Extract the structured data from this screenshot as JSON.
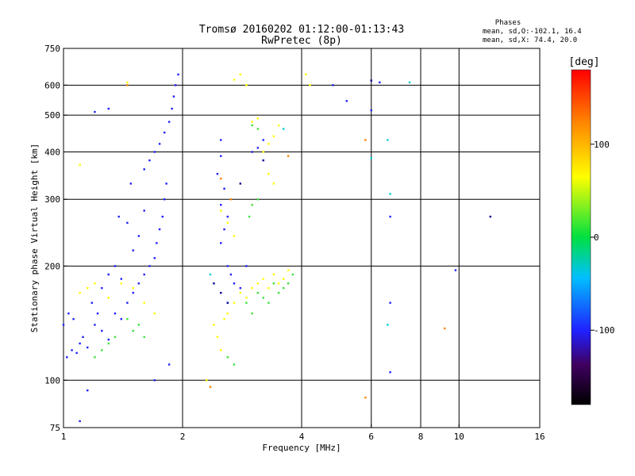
{
  "chart_data": {
    "type": "scatter",
    "title": "Tromsø 20160202 01:12:00-01:13:43",
    "subtitle": "RwPretec (8p)",
    "xlabel": "Frequency [MHz]",
    "ylabel": "Stationary phase Virtual Height [km]",
    "xscale": "log",
    "yscale": "log",
    "xlim": [
      1,
      16
    ],
    "ylim": [
      75,
      750
    ],
    "xticks": [
      1,
      2,
      4,
      6,
      8,
      10,
      16
    ],
    "yticks": [
      75,
      100,
      200,
      300,
      400,
      500,
      600,
      750
    ],
    "grid_x": [
      2,
      4,
      6,
      8,
      10
    ],
    "grid_y": [
      100,
      200,
      300,
      400,
      500,
      600
    ],
    "legend": {
      "title": "Phases",
      "lines": [
        "mean, sd,O:-102.1, 16.4",
        "mean, sd,X:  74.4, 20.0"
      ],
      "placement": "top-right"
    },
    "colorbar": {
      "label": "[deg]",
      "range": [
        -180,
        180
      ],
      "ticks": [
        "100",
        "0",
        "-100"
      ],
      "tick_values": [
        100,
        0,
        -100
      ]
    },
    "series": [
      {
        "name": "O",
        "color": "#2020ff",
        "points": [
          [
            1.02,
            115
          ],
          [
            1.05,
            120
          ],
          [
            1.08,
            118
          ],
          [
            1.1,
            125
          ],
          [
            1.12,
            130
          ],
          [
            1.15,
            122
          ],
          [
            1.2,
            140
          ],
          [
            1.25,
            135
          ],
          [
            1.3,
            128
          ],
          [
            1.35,
            150
          ],
          [
            1.4,
            145
          ],
          [
            1.45,
            160
          ],
          [
            1.5,
            170
          ],
          [
            1.55,
            180
          ],
          [
            1.6,
            190
          ],
          [
            1.65,
            200
          ],
          [
            1.7,
            210
          ],
          [
            1.72,
            230
          ],
          [
            1.75,
            250
          ],
          [
            1.78,
            270
          ],
          [
            1.8,
            300
          ],
          [
            1.82,
            330
          ],
          [
            1.6,
            360
          ],
          [
            1.65,
            380
          ],
          [
            1.7,
            400
          ],
          [
            1.75,
            420
          ],
          [
            1.8,
            450
          ],
          [
            1.85,
            480
          ],
          [
            1.88,
            520
          ],
          [
            1.9,
            560
          ],
          [
            1.92,
            600
          ],
          [
            1.95,
            640
          ],
          [
            1.5,
            220
          ],
          [
            1.45,
            260
          ],
          [
            1.55,
            240
          ],
          [
            1.6,
            280
          ],
          [
            1.35,
            200
          ],
          [
            1.3,
            190
          ],
          [
            1.25,
            175
          ],
          [
            1.4,
            185
          ],
          [
            1.18,
            160
          ],
          [
            1.22,
            150
          ],
          [
            1.0,
            140
          ],
          [
            1.03,
            150
          ],
          [
            1.06,
            145
          ],
          [
            1.3,
            520
          ],
          [
            1.2,
            510
          ],
          [
            1.85,
            110
          ],
          [
            1.7,
            100
          ],
          [
            1.15,
            94
          ],
          [
            1.1,
            78
          ],
          [
            2.5,
            430
          ],
          [
            2.5,
            390
          ],
          [
            2.45,
            350
          ],
          [
            2.55,
            320
          ],
          [
            2.5,
            290
          ],
          [
            2.6,
            270
          ],
          [
            2.55,
            250
          ],
          [
            2.5,
            230
          ],
          [
            2.6,
            200
          ],
          [
            2.65,
            190
          ],
          [
            2.7,
            180
          ],
          [
            2.8,
            175
          ],
          [
            2.9,
            200
          ],
          [
            3.0,
            400
          ],
          [
            3.1,
            410
          ],
          [
            3.2,
            430
          ],
          [
            6.0,
            515
          ],
          [
            6.7,
            270
          ],
          [
            6.7,
            160
          ],
          [
            6.7,
            105
          ],
          [
            6.3,
            610
          ],
          [
            9.8,
            195
          ],
          [
            5.2,
            545
          ],
          [
            4.8,
            600
          ],
          [
            1.38,
            270
          ],
          [
            1.48,
            330
          ]
        ]
      },
      {
        "name": "X",
        "color": "#ffff00",
        "points": [
          [
            2.4,
            140
          ],
          [
            2.45,
            130
          ],
          [
            2.5,
            120
          ],
          [
            2.55,
            145
          ],
          [
            2.6,
            150
          ],
          [
            2.7,
            160
          ],
          [
            2.8,
            170
          ],
          [
            2.9,
            165
          ],
          [
            3.0,
            175
          ],
          [
            3.1,
            180
          ],
          [
            3.2,
            185
          ],
          [
            3.3,
            175
          ],
          [
            3.4,
            190
          ],
          [
            3.5,
            180
          ],
          [
            3.6,
            185
          ],
          [
            3.7,
            195
          ],
          [
            3.5,
            470
          ],
          [
            3.4,
            440
          ],
          [
            3.3,
            420
          ],
          [
            3.2,
            400
          ],
          [
            3.0,
            480
          ],
          [
            3.1,
            490
          ],
          [
            2.9,
            600
          ],
          [
            2.8,
            640
          ],
          [
            2.7,
            620
          ],
          [
            3.3,
            350
          ],
          [
            3.4,
            330
          ],
          [
            2.5,
            280
          ],
          [
            2.6,
            260
          ],
          [
            2.7,
            240
          ],
          [
            1.1,
            170
          ],
          [
            1.15,
            175
          ],
          [
            1.2,
            180
          ],
          [
            1.3,
            165
          ],
          [
            1.4,
            180
          ],
          [
            1.5,
            175
          ],
          [
            1.6,
            160
          ],
          [
            1.7,
            150
          ],
          [
            1.1,
            370
          ],
          [
            1.45,
            610
          ],
          [
            4.1,
            640
          ],
          [
            4.2,
            600
          ],
          [
            2.3,
            100
          ],
          [
            2.9,
            600
          ]
        ]
      },
      {
        "name": "X-green",
        "color": "#40e040",
        "points": [
          [
            2.9,
            160
          ],
          [
            3.0,
            150
          ],
          [
            3.1,
            170
          ],
          [
            3.2,
            165
          ],
          [
            3.3,
            160
          ],
          [
            3.4,
            180
          ],
          [
            3.5,
            170
          ],
          [
            3.6,
            175
          ],
          [
            3.7,
            180
          ],
          [
            3.8,
            190
          ],
          [
            2.95,
            270
          ],
          [
            3.0,
            290
          ],
          [
            3.1,
            300
          ],
          [
            3.0,
            470
          ],
          [
            3.1,
            460
          ],
          [
            2.6,
            115
          ],
          [
            2.7,
            110
          ],
          [
            1.3,
            125
          ],
          [
            1.35,
            130
          ],
          [
            1.25,
            120
          ],
          [
            1.5,
            135
          ],
          [
            1.6,
            130
          ],
          [
            1.55,
            140
          ],
          [
            1.45,
            145
          ],
          [
            1.2,
            115
          ]
        ]
      },
      {
        "name": "X-orange",
        "color": "#ff8000",
        "points": [
          [
            1.45,
            600
          ],
          [
            5.8,
            430
          ],
          [
            5.8,
            90
          ],
          [
            9.2,
            137
          ],
          [
            2.5,
            340
          ],
          [
            3.7,
            390
          ],
          [
            2.35,
            96
          ],
          [
            2.65,
            300
          ]
        ]
      },
      {
        "name": "X-cyan",
        "color": "#00d0d0",
        "points": [
          [
            6.6,
            430
          ],
          [
            6.7,
            310
          ],
          [
            6.6,
            140
          ],
          [
            7.5,
            610
          ],
          [
            3.6,
            460
          ],
          [
            2.35,
            190
          ],
          [
            6.0,
            385
          ]
        ]
      },
      {
        "name": "O-navy",
        "color": "#000090",
        "points": [
          [
            2.4,
            180
          ],
          [
            2.5,
            170
          ],
          [
            2.6,
            160
          ],
          [
            12.0,
            270
          ],
          [
            6.0,
            617
          ],
          [
            3.2,
            380
          ],
          [
            2.8,
            330
          ]
        ]
      }
    ]
  }
}
